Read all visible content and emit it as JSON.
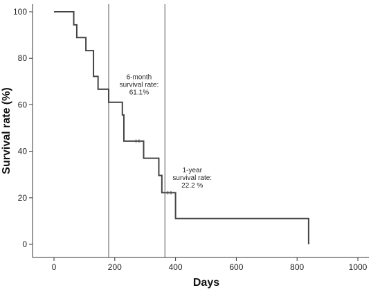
{
  "chart_data": {
    "type": "line",
    "title": "",
    "xlabel": "Days",
    "ylabel": "Survival rate (%)",
    "xlim": [
      0,
      1000
    ],
    "ylim": [
      0,
      100
    ],
    "x_ticks": [
      0,
      200,
      400,
      600,
      800,
      1000
    ],
    "y_ticks": [
      0,
      20,
      40,
      60,
      80,
      100
    ],
    "grid": false,
    "series": [
      {
        "step": true,
        "color": "#444444",
        "x": [
          0,
          65,
          75,
          105,
          130,
          145,
          180,
          225,
          230,
          295,
          345,
          355,
          400,
          838,
          838
        ],
        "y": [
          100,
          94.4,
          88.9,
          83.3,
          72.2,
          66.7,
          61.1,
          55.6,
          44.4,
          37.0,
          29.6,
          22.2,
          11.1,
          11.1,
          0
        ]
      }
    ],
    "censor_marks": [
      {
        "x": 270,
        "y": 44.4
      },
      {
        "x": 280,
        "y": 44.4
      },
      {
        "x": 375,
        "y": 22.2
      },
      {
        "x": 385,
        "y": 22.2
      }
    ],
    "reference_lines": [
      {
        "x": 180
      },
      {
        "x": 365
      }
    ],
    "annotations": [
      {
        "lines": [
          "6-month",
          "survival rate:",
          "61.1%"
        ],
        "x": 280,
        "y": 71
      },
      {
        "lines": [
          "1-year",
          "survival rate:",
          "22.2 %"
        ],
        "x": 455,
        "y": 31
      }
    ]
  }
}
